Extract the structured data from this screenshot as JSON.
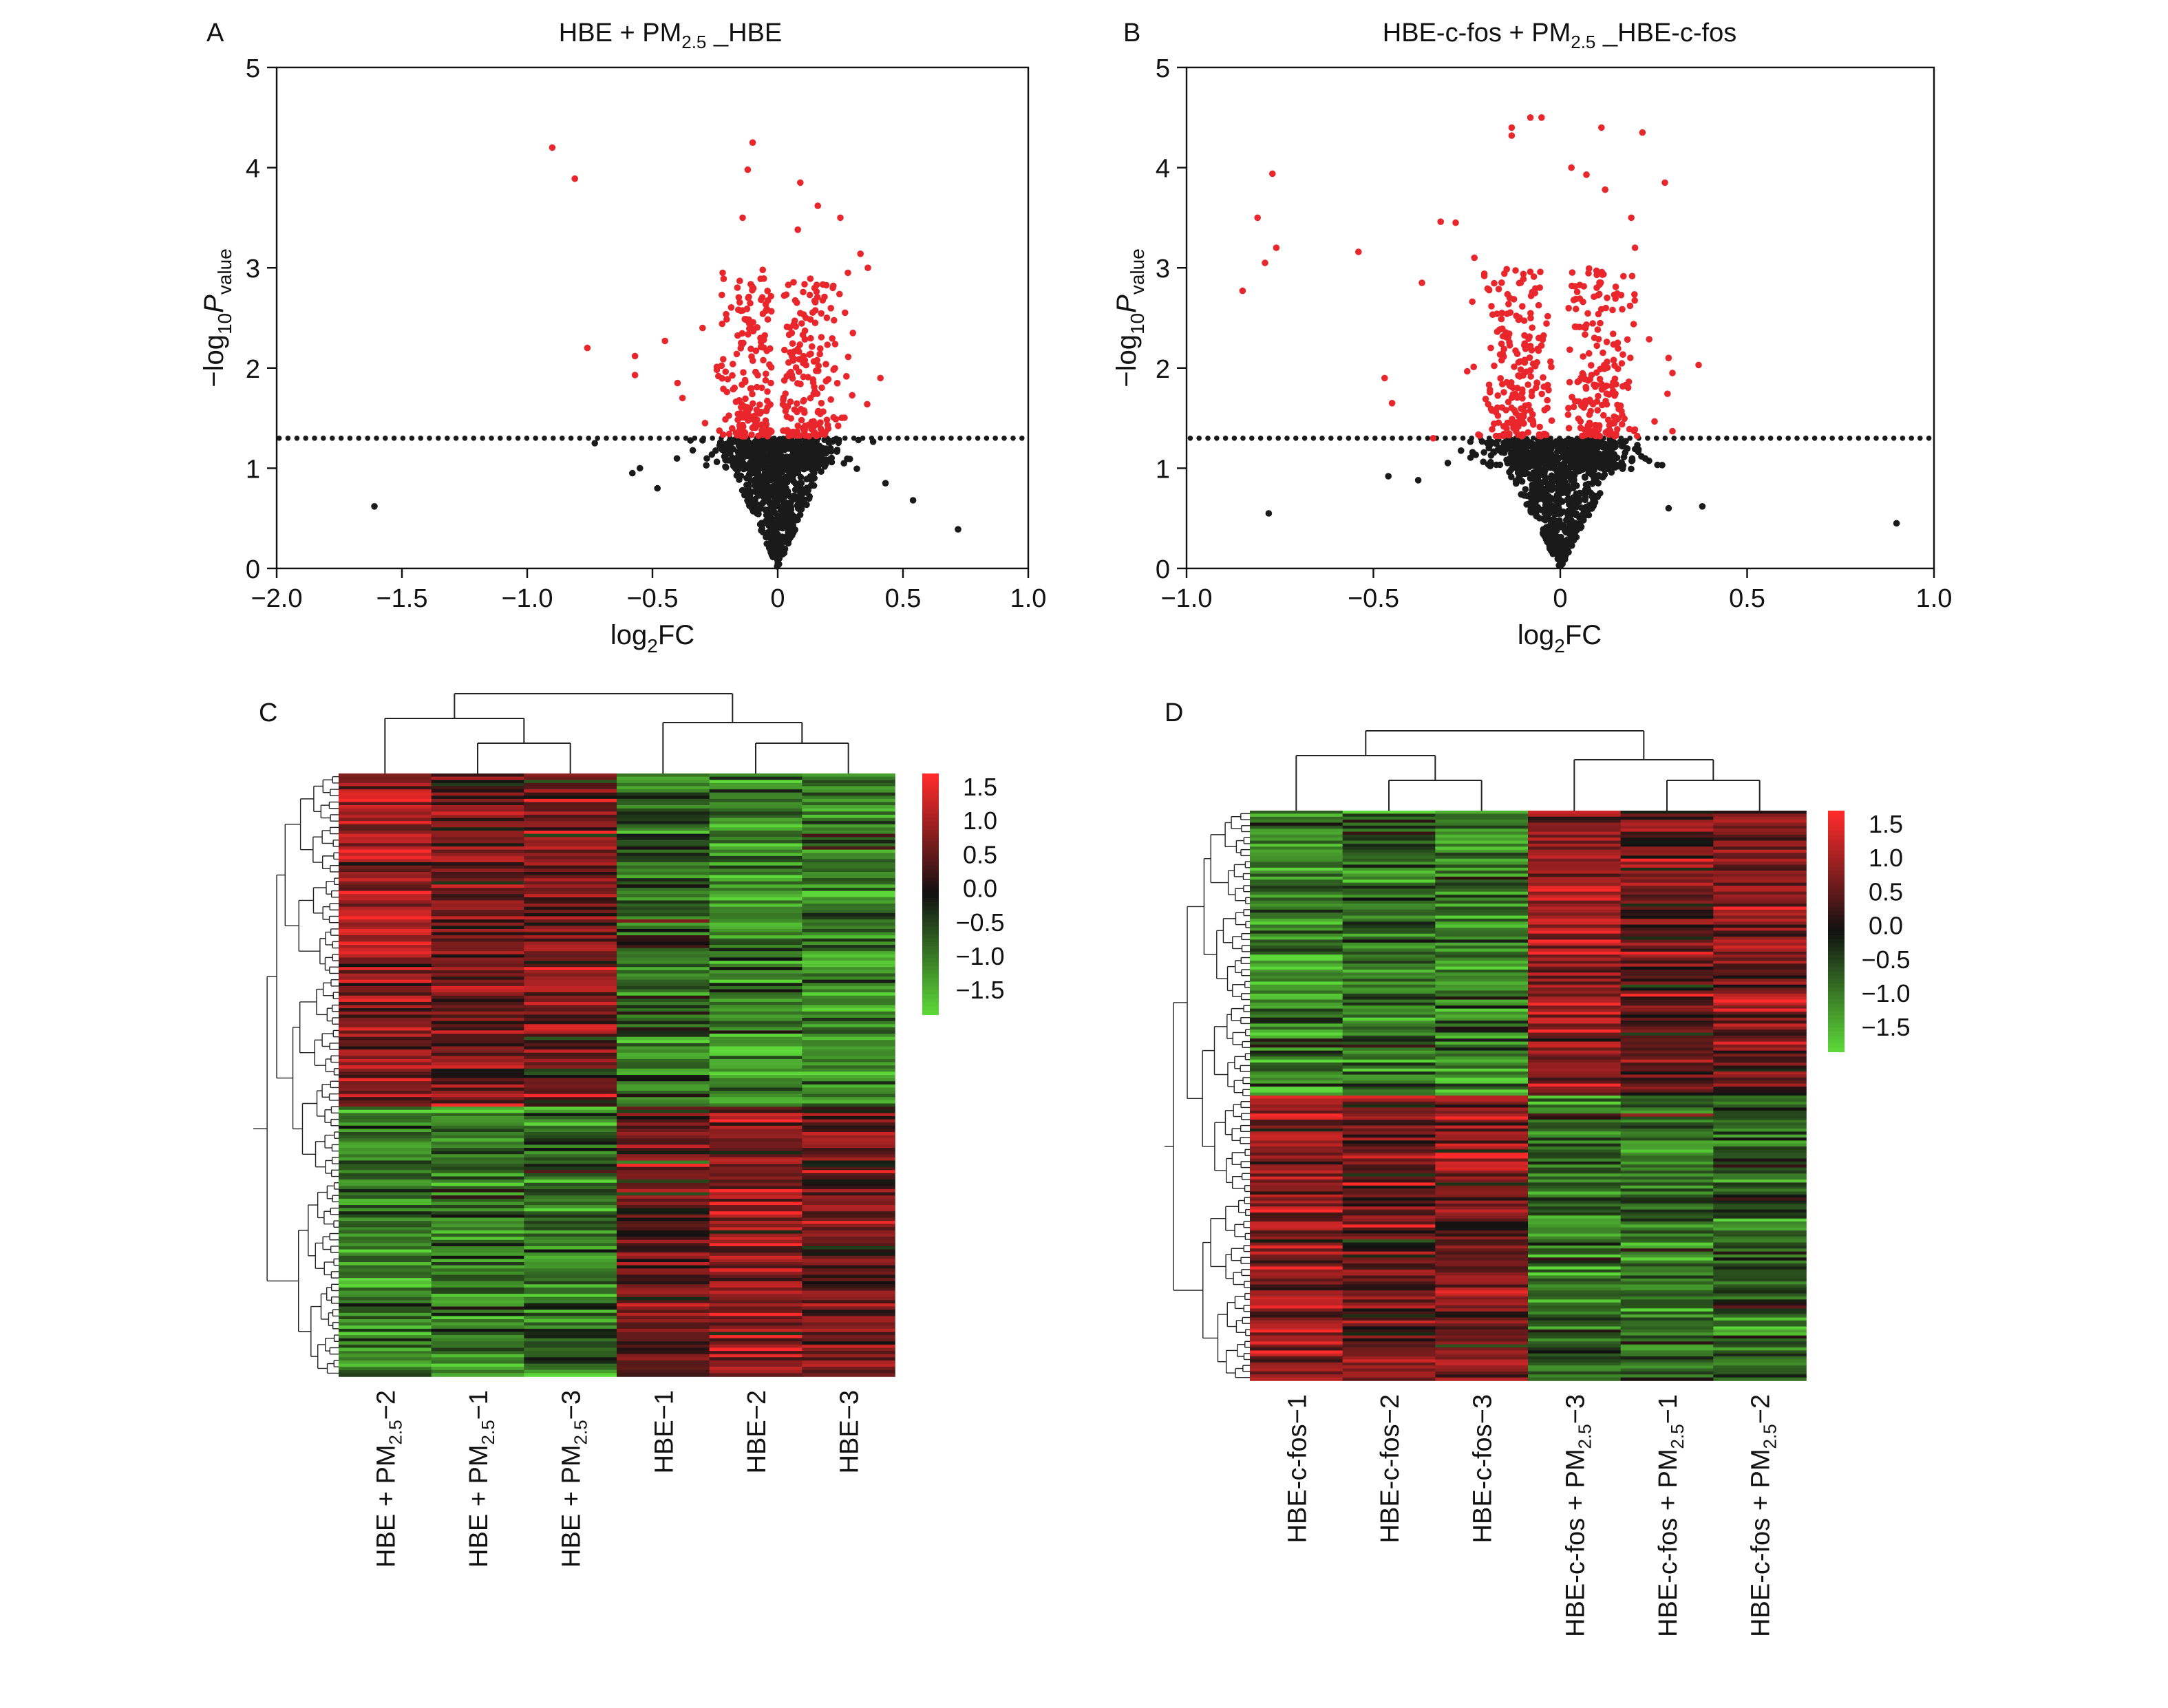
{
  "chart_data": [
    {
      "panel": "A",
      "type": "scatter",
      "title": "HBE + PM₂.₅ _HBE",
      "title_parts": {
        "pre": "HBE + PM",
        "sub": "2.5",
        "post": " _HBE"
      },
      "xlabel_parts": {
        "pre": "log",
        "sub": "2",
        "post": "FC"
      },
      "ylabel_parts": {
        "pre": "−log",
        "sub1": "10",
        "mid": "P",
        "sub2": "value"
      },
      "xlim": [
        -2.0,
        1.0
      ],
      "ylim": [
        0,
        5
      ],
      "xticks": [
        "−2.0",
        "−1.5",
        "−1.0",
        "−0.5",
        "0",
        "0.5",
        "1.0"
      ],
      "yticks": [
        "0",
        "1",
        "2",
        "3",
        "4",
        "5"
      ],
      "threshold_y": 1.3,
      "colors": {
        "significant": "#e8262c",
        "not_significant": "#1a1a1a"
      },
      "significant_points": [
        [
          -0.9,
          4.2
        ],
        [
          -0.81,
          3.89
        ],
        [
          -0.76,
          2.2
        ],
        [
          -0.57,
          2.12
        ],
        [
          -0.57,
          1.93
        ],
        [
          -0.45,
          2.27
        ],
        [
          -0.4,
          1.85
        ],
        [
          -0.38,
          1.7
        ],
        [
          -0.22,
          2.95
        ],
        [
          -0.1,
          4.25
        ],
        [
          -0.12,
          3.98
        ],
        [
          -0.14,
          3.5
        ],
        [
          0.09,
          3.85
        ],
        [
          0.16,
          3.62
        ],
        [
          0.25,
          3.5
        ],
        [
          0.08,
          3.38
        ],
        [
          0.33,
          3.14
        ],
        [
          0.36,
          3.0
        ],
        [
          0.28,
          2.95
        ],
        [
          0.22,
          2.8
        ],
        [
          -0.06,
          2.98
        ],
        [
          -0.3,
          2.4
        ],
        [
          0.3,
          2.35
        ],
        [
          0.41,
          1.9
        ],
        [
          -0.29,
          1.45
        ]
      ],
      "significant_cluster": {
        "left_center": -0.12,
        "right_center": 0.12,
        "spread": 0.09,
        "count_each": 180,
        "y_range": [
          1.32,
          2.9
        ]
      },
      "nonsignificant_cluster": {
        "center": 0.0,
        "spread": 0.1,
        "count": 900,
        "y_range": [
          0,
          1.29
        ]
      },
      "outliers": [
        [
          -1.61,
          0.62
        ],
        [
          0.72,
          0.39
        ],
        [
          0.54,
          0.68
        ],
        [
          -0.55,
          1.0
        ],
        [
          -0.58,
          0.95
        ],
        [
          -0.48,
          0.8
        ],
        [
          0.43,
          0.85
        ],
        [
          -0.73,
          1.25
        ]
      ]
    },
    {
      "panel": "B",
      "type": "scatter",
      "title": "HBE-c-fos + PM₂.₅ _HBE-c-fos",
      "title_parts": {
        "pre": "HBE-c-fos + PM",
        "sub": "2.5",
        "post": " _HBE-c-fos"
      },
      "xlabel_parts": {
        "pre": "log",
        "sub": "2",
        "post": "FC"
      },
      "ylabel_parts": {
        "pre": "−log",
        "sub1": "10",
        "mid": "P",
        "sub2": "value"
      },
      "xlim": [
        -1.0,
        1.0
      ],
      "ylim": [
        0,
        5
      ],
      "xticks": [
        "−1.0",
        "−0.5",
        "0",
        "0.5",
        "1.0"
      ],
      "yticks": [
        "0",
        "1",
        "2",
        "3",
        "4",
        "5"
      ],
      "threshold_y": 1.3,
      "colors": {
        "significant": "#e8262c",
        "not_significant": "#1a1a1a"
      },
      "significant_points": [
        [
          -0.77,
          3.94
        ],
        [
          -0.81,
          3.5
        ],
        [
          -0.85,
          2.77
        ],
        [
          -0.76,
          3.2
        ],
        [
          -0.79,
          3.05
        ],
        [
          -0.54,
          3.16
        ],
        [
          -0.47,
          1.9
        ],
        [
          -0.45,
          1.65
        ],
        [
          -0.32,
          3.46
        ],
        [
          -0.28,
          3.45
        ],
        [
          -0.37,
          2.85
        ],
        [
          -0.23,
          3.1
        ],
        [
          -0.05,
          4.5
        ],
        [
          -0.08,
          4.5
        ],
        [
          -0.13,
          4.4
        ],
        [
          -0.13,
          4.32
        ],
        [
          0.11,
          4.4
        ],
        [
          0.22,
          4.35
        ],
        [
          0.03,
          4.0
        ],
        [
          0.07,
          3.93
        ],
        [
          0.12,
          3.78
        ],
        [
          0.19,
          3.5
        ],
        [
          0.28,
          3.85
        ],
        [
          0.2,
          3.2
        ],
        [
          0.29,
          2.1
        ],
        [
          0.37,
          2.03
        ],
        [
          0.3,
          1.95
        ],
        [
          -0.34,
          1.3
        ],
        [
          0.3,
          1.37
        ]
      ],
      "significant_cluster": {
        "left_center": -0.11,
        "right_center": 0.1,
        "spread": 0.07,
        "count_each": 200,
        "y_range": [
          1.32,
          3.0
        ]
      },
      "nonsignificant_cluster": {
        "center": 0.0,
        "spread": 0.08,
        "count": 950,
        "y_range": [
          0,
          1.29
        ]
      },
      "outliers": [
        [
          -0.78,
          0.55
        ],
        [
          0.9,
          0.45
        ],
        [
          0.38,
          0.62
        ],
        [
          -0.38,
          0.88
        ],
        [
          -0.46,
          0.92
        ],
        [
          0.29,
          0.6
        ]
      ]
    },
    {
      "panel": "C",
      "type": "heatmap",
      "samples": [
        "HBE + PM2.5−2",
        "HBE + PM2.5−1",
        "HBE + PM2.5−3",
        "HBE−1",
        "HBE−2",
        "HBE−3"
      ],
      "sample_parts": [
        {
          "pre": "HBE + PM",
          "sub": "2.5",
          "post": "−2"
        },
        {
          "pre": "HBE + PM",
          "sub": "2.5",
          "post": "−1"
        },
        {
          "pre": "HBE + PM",
          "sub": "2.5",
          "post": "−3"
        },
        {
          "pre": "HBE−1",
          "sub": "",
          "post": ""
        },
        {
          "pre": "HBE−2",
          "sub": "",
          "post": ""
        },
        {
          "pre": "HBE−3",
          "sub": "",
          "post": ""
        }
      ],
      "column_means_block1": [
        1.05,
        0.75,
        0.6,
        -0.7,
        -1.1,
        -1.0
      ],
      "column_means_block2": [
        -1.05,
        -0.9,
        -0.9,
        0.55,
        0.95,
        0.75
      ],
      "block1_fraction": 0.55,
      "n_rows": 190,
      "legend_ticks": [
        "1.5",
        "1.0",
        "0.5",
        "0.0",
        "−0.5",
        "−1.0",
        "−1.5"
      ],
      "legend_range": [
        -1.8,
        1.8
      ],
      "colors": {
        "high": "#ff2b2b",
        "mid": "#111111",
        "low": "#5cd638"
      }
    },
    {
      "panel": "D",
      "type": "heatmap",
      "samples": [
        "HBE-c-fos−1",
        "HBE-c-fos−2",
        "HBE-c-fos−3",
        "HBE-c-fos + PM2.5−3",
        "HBE-c-fos + PM2.5−1",
        "HBE-c-fos + PM2.5−2"
      ],
      "sample_parts": [
        {
          "pre": "HBE-c-fos−1",
          "sub": "",
          "post": ""
        },
        {
          "pre": "HBE-c-fos−2",
          "sub": "",
          "post": ""
        },
        {
          "pre": "HBE-c-fos−3",
          "sub": "",
          "post": ""
        },
        {
          "pre": "HBE-c-fos + PM",
          "sub": "2.5",
          "post": "−3"
        },
        {
          "pre": "HBE-c-fos + PM",
          "sub": "2.5",
          "post": "−1"
        },
        {
          "pre": "HBE-c-fos + PM",
          "sub": "2.5",
          "post": "−2"
        }
      ],
      "column_means_block1": [
        -1.05,
        -0.8,
        -0.95,
        1.05,
        0.55,
        0.75
      ],
      "column_means_block2": [
        0.95,
        0.6,
        0.8,
        -0.85,
        -0.8,
        -0.75
      ],
      "block1_fraction": 0.5,
      "n_rows": 190,
      "legend_ticks": [
        "1.5",
        "1.0",
        "0.5",
        "0.0",
        "−0.5",
        "−1.0",
        "−1.5"
      ],
      "legend_range": [
        -1.8,
        1.8
      ],
      "colors": {
        "high": "#ff2b2b",
        "mid": "#111111",
        "low": "#5cd638"
      }
    }
  ]
}
